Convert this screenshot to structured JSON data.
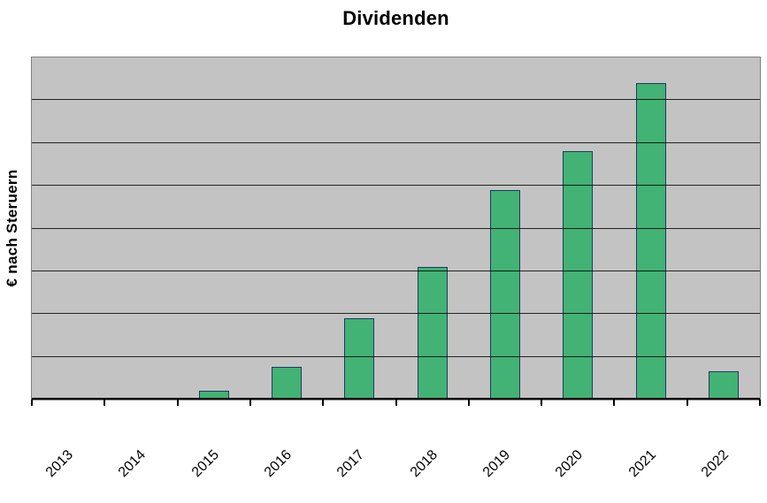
{
  "chart_data": {
    "type": "bar",
    "title": "Dividenden",
    "xlabel": "",
    "ylabel": "€ nach Steruern",
    "categories": [
      "2013",
      "2014",
      "2015",
      "2016",
      "2017",
      "2018",
      "2019",
      "2020",
      "2021",
      "2022"
    ],
    "values": [
      0,
      0.05,
      0.2,
      0.76,
      1.9,
      3.1,
      4.9,
      5.8,
      7.4,
      0.66
    ],
    "ylim": [
      0,
      8
    ],
    "y_axis_numeric_labels": false,
    "gridline_count": 7,
    "grid": true,
    "legend": "none",
    "x_tick_rotation_deg": 45,
    "colors": {
      "bar_fill": "#42b374",
      "bar_border": "#1f3864",
      "plot_background": "#c3c3c3",
      "plot_frame": "#7f7f7f",
      "gridline": "#000000",
      "axis": "#000000",
      "text": "#000000",
      "page_background": "#ffffff"
    }
  }
}
